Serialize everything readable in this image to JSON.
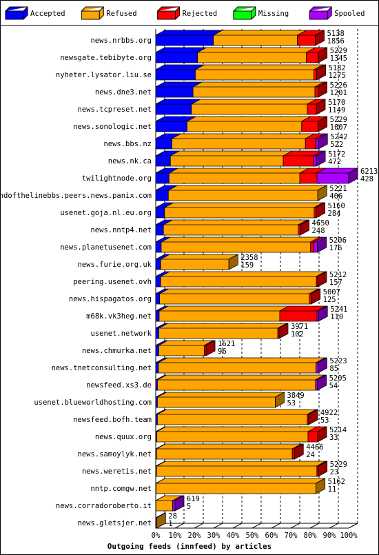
{
  "chart_data": {
    "type": "bar3d",
    "title": "Outgoing feeds (innfeed) by articles",
    "categories": [
      "news.nrbbs.org",
      "newsgate.tebibyte.org",
      "nyheter.lysator.liu.se",
      "news.dne3.net",
      "news.tcpreset.net",
      "news.sonologic.net",
      "news.bbs.nz",
      "news.nk.ca",
      "twilightnode.org",
      "endofthelinebbs.peers.news.panix.com",
      "usenet.goja.nl.eu.org",
      "news.nntp4.net",
      "news.planetusenet.com",
      "news.furie.org.uk",
      "peering.usenet.ovh",
      "news.hispagatos.org",
      "m68k.vk3heg.net",
      "usenet.network",
      "news.chmurka.net",
      "news.tnetconsulting.net",
      "newsfeed.xs3.de",
      "usenet.blueworldhosting.com",
      "newsfeed.bofh.team",
      "news.quux.org",
      "news.samoylyk.net",
      "news.weretis.net",
      "nntp.comgw.net",
      "news.corradoroberto.it",
      "news.gletsjer.net"
    ],
    "totals": [
      5138,
      5229,
      5182,
      5226,
      5170,
      5229,
      5242,
      5172,
      6213,
      5221,
      5160,
      4650,
      5206,
      2358,
      5212,
      5007,
      5241,
      3971,
      1621,
      5223,
      5205,
      3849,
      4922,
      5214,
      4466,
      5229,
      5162,
      619,
      28
    ],
    "series": [
      {
        "name": "Accepted",
        "color": "#0000ff",
        "values": [
          1856,
          1345,
          1275,
          1201,
          1149,
          1007,
          522,
          472,
          428,
          406,
          284,
          248,
          176,
          159,
          157,
          125,
          110,
          102,
          96,
          85,
          54,
          53,
          53,
          33,
          24,
          23,
          11,
          5,
          1
        ]
      },
      {
        "name": "Refused",
        "color": "#ffa500",
        "values": [
          2705,
          3507,
          3817,
          3925,
          3731,
          3692,
          4297,
          3634,
          4210,
          4815,
          4816,
          4342,
          4810,
          2199,
          5015,
          4822,
          3883,
          3829,
          1465,
          5078,
          5091,
          3796,
          4829,
          4871,
          4372,
          5166,
          5151,
          544,
          27
        ]
      },
      {
        "name": "Rejected",
        "color": "#ff0000",
        "values": [
          577,
          377,
          90,
          100,
          290,
          530,
          333,
          976,
          555,
          0,
          60,
          60,
          110,
          0,
          40,
          60,
          1198,
          40,
          60,
          0,
          0,
          0,
          40,
          310,
          70,
          40,
          0,
          0,
          0
        ]
      },
      {
        "name": "Missing",
        "color": "#00ff00",
        "values": [
          0,
          0,
          0,
          0,
          0,
          0,
          0,
          0,
          0,
          0,
          0,
          0,
          0,
          0,
          0,
          0,
          0,
          0,
          0,
          0,
          0,
          0,
          0,
          0,
          0,
          0,
          0,
          0,
          0
        ]
      },
      {
        "name": "Spooled",
        "color": "#aa00ff",
        "values": [
          0,
          0,
          0,
          0,
          0,
          0,
          90,
          90,
          1020,
          0,
          0,
          0,
          110,
          0,
          0,
          0,
          50,
          0,
          0,
          60,
          60,
          0,
          0,
          0,
          0,
          0,
          0,
          70,
          0
        ]
      }
    ],
    "xlim": [
      0,
      100
    ],
    "xticks": [
      {
        "value": 0,
        "label": "0%"
      },
      {
        "value": 10,
        "label": "10%"
      },
      {
        "value": 20,
        "label": "20%"
      },
      {
        "value": 30,
        "label": "30%"
      },
      {
        "value": 40,
        "label": "40%"
      },
      {
        "value": 50,
        "label": "50%"
      },
      {
        "value": 60,
        "label": "60%"
      },
      {
        "value": 70,
        "label": "70%"
      },
      {
        "value": 80,
        "label": "80%"
      },
      {
        "value": 90,
        "label": "90%"
      },
      {
        "value": 100,
        "label": "100%"
      }
    ],
    "grid": true
  }
}
